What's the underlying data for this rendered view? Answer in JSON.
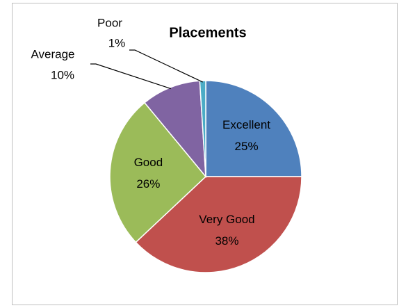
{
  "chart_data": {
    "type": "pie",
    "title": "Placements",
    "categories": [
      "Excellent",
      "Very Good",
      "Good",
      "Average",
      "Poor"
    ],
    "values": [
      25,
      38,
      26,
      10,
      1
    ],
    "value_labels": [
      "25%",
      "38%",
      "26%",
      "10%",
      "1%"
    ],
    "colors": [
      "#4f81bd",
      "#c0504d",
      "#9bbb59",
      "#8064a2",
      "#4bacc6"
    ]
  }
}
